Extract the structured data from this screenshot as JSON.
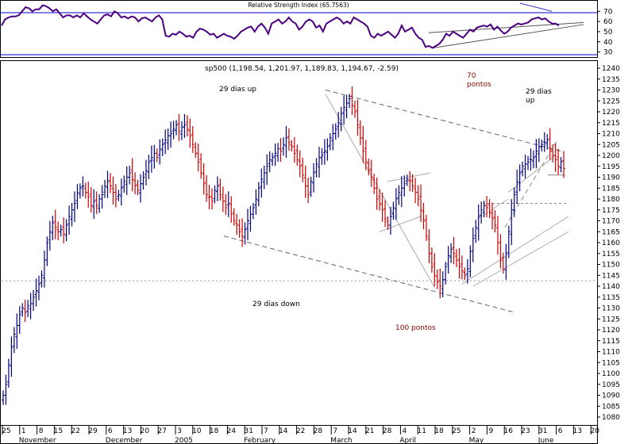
{
  "chart_data": [
    {
      "type": "line",
      "title": "Relative Strength Index (65.7563)",
      "y_ticks": [
        70,
        60,
        50,
        40,
        30
      ],
      "ylim": [
        25,
        78
      ],
      "series": [
        {
          "values": [
            56,
            62,
            64,
            65,
            65,
            66,
            70,
            74,
            73,
            70,
            72,
            72,
            76,
            75,
            73,
            70,
            72,
            68,
            64,
            66,
            66,
            64,
            66,
            64,
            68,
            65,
            62,
            60,
            58,
            62,
            66,
            67,
            65,
            70,
            68,
            64,
            65,
            63,
            65,
            64,
            60,
            63,
            64,
            62,
            60,
            64,
            66,
            62,
            46,
            45,
            48,
            47,
            50,
            48,
            45,
            46,
            44,
            50,
            53,
            52,
            50,
            47,
            48,
            44,
            46,
            48,
            46,
            45,
            43,
            46,
            50,
            52,
            54,
            55,
            50,
            55,
            58,
            54,
            48,
            58,
            60,
            62,
            58,
            60,
            64,
            60,
            58,
            52,
            55,
            60,
            62,
            60,
            54,
            56,
            50,
            58,
            60,
            62,
            64,
            62,
            58,
            60,
            58,
            64,
            62,
            60,
            58,
            55,
            46,
            44,
            48,
            46,
            48,
            50,
            47,
            44,
            48,
            56,
            50,
            52,
            54,
            48,
            44,
            42,
            35,
            36,
            34,
            36,
            38,
            42,
            48,
            46,
            50,
            48,
            46,
            44,
            48,
            52,
            50,
            54,
            55,
            56,
            55,
            57,
            52,
            55,
            51,
            48,
            50,
            54,
            56,
            58,
            57,
            58,
            59,
            62,
            63,
            64,
            62,
            63,
            60,
            58,
            58,
            56
          ]
        }
      ]
    },
    {
      "type": "bar",
      "title": "sp500 (1,198.54, 1,201.97, 1,189.83, 1,194.67, -2.59)",
      "y_ticks": [
        1240,
        1235,
        1230,
        1225,
        1220,
        1215,
        1210,
        1205,
        1200,
        1195,
        1190,
        1185,
        1180,
        1175,
        1170,
        1165,
        1160,
        1155,
        1150,
        1145,
        1140,
        1135,
        1130,
        1125,
        1120,
        1115,
        1110,
        1105,
        1100,
        1095,
        1090,
        1085,
        1080
      ],
      "ylim": [
        1075,
        1245
      ],
      "x_tick_labels": [
        "25",
        "1",
        "8",
        "15",
        "22",
        "29",
        "6",
        "13",
        "20",
        "27",
        "3",
        "10",
        "18",
        "24",
        "31",
        "7",
        "14",
        "22",
        "28",
        "7",
        "14",
        "21",
        "28",
        "4",
        "11",
        "18",
        "25",
        "2",
        "9",
        "16",
        "23",
        "31",
        "6",
        "13",
        "20"
      ],
      "x_month_labels": [
        "November",
        "December",
        "2005",
        "February",
        "March",
        "April",
        "May",
        "June"
      ],
      "closes": [
        1090,
        1095,
        1104,
        1112,
        1118,
        1122,
        1127,
        1130,
        1128,
        1131,
        1132,
        1135,
        1138,
        1141,
        1145,
        1152,
        1160,
        1165,
        1169,
        1167,
        1165,
        1166,
        1164,
        1168,
        1172,
        1175,
        1178,
        1183,
        1185,
        1186,
        1183,
        1181,
        1177,
        1179,
        1177,
        1180,
        1182,
        1186,
        1188,
        1186,
        1183,
        1180,
        1182,
        1185,
        1188,
        1190,
        1192,
        1189,
        1186,
        1184,
        1187,
        1190,
        1193,
        1197,
        1199,
        1201,
        1199,
        1203,
        1205,
        1207,
        1209,
        1210,
        1212,
        1214,
        1211,
        1213,
        1214,
        1212,
        1209,
        1205,
        1201,
        1197,
        1192,
        1187,
        1182,
        1181,
        1179,
        1184,
        1186,
        1182,
        1179,
        1176,
        1178,
        1173,
        1170,
        1168,
        1165,
        1163,
        1166,
        1170,
        1173,
        1176,
        1180,
        1185,
        1189,
        1192,
        1195,
        1198,
        1199,
        1201,
        1203,
        1202,
        1205,
        1208,
        1206,
        1204,
        1201,
        1198,
        1195,
        1191,
        1186,
        1182,
        1188,
        1192,
        1196,
        1199,
        1200,
        1202,
        1204,
        1208,
        1210,
        1212,
        1215,
        1219,
        1222,
        1224,
        1226,
        1223,
        1220,
        1214,
        1208,
        1202,
        1197,
        1193,
        1190,
        1185,
        1180,
        1178,
        1175,
        1171,
        1168,
        1172,
        1176,
        1180,
        1183,
        1185,
        1187,
        1189,
        1188,
        1186,
        1183,
        1180,
        1175,
        1170,
        1163,
        1155,
        1149,
        1145,
        1142,
        1140,
        1143,
        1149,
        1154,
        1157,
        1155,
        1152,
        1149,
        1147,
        1145,
        1148,
        1156,
        1162,
        1167,
        1172,
        1175,
        1177,
        1176,
        1174,
        1171,
        1168,
        1160,
        1152,
        1148,
        1155,
        1165,
        1175,
        1182,
        1188,
        1192,
        1195,
        1196,
        1197,
        1198,
        1199,
        1202,
        1204,
        1205,
        1206,
        1207,
        1203,
        1200,
        1198,
        1195,
        1197,
        1194
      ],
      "annotations": [
        "29 dias up",
        "70 pontos",
        "29 dias up",
        "29 dias down",
        "100 pontos"
      ],
      "colors": {
        "up_bar": "#000080",
        "down_bar": "#cc0000",
        "rsi_line": "#4b0082",
        "panel_border": "#0000cc",
        "trend_line": "#555555"
      }
    }
  ]
}
